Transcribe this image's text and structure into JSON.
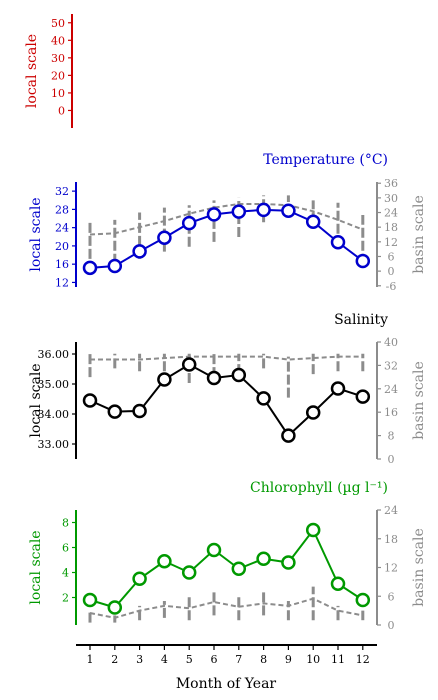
{
  "chart_data": [
    {
      "type": "line",
      "title": "",
      "ylabel": "local scale",
      "color": "#cc0000",
      "ylim": [
        -10,
        55
      ],
      "yticks": [
        0,
        10,
        20,
        30,
        40,
        50
      ],
      "series": []
    },
    {
      "type": "line",
      "title": "Temperature (°C)",
      "ylabel": "local scale",
      "ylabel_right": "basin scale",
      "color": "#0000cc",
      "ylim": [
        11,
        34
      ],
      "yticks": [
        12,
        16,
        20,
        24,
        28,
        32
      ],
      "ylim_right": [
        -6.5,
        36.5
      ],
      "yticks_right": [
        -6,
        0,
        6,
        12,
        18,
        24,
        30,
        36
      ],
      "x": [
        1,
        2,
        3,
        4,
        5,
        6,
        7,
        8,
        9,
        10,
        11,
        12
      ],
      "values": [
        15.2,
        15.6,
        18.8,
        21.8,
        25.0,
        26.9,
        27.5,
        27.9,
        27.7,
        25.3,
        20.8,
        16.7
      ],
      "basin_mean": [
        15,
        15.5,
        18,
        20.5,
        23.5,
        26,
        27.5,
        27.5,
        27,
        24.5,
        21,
        17
      ],
      "basin_range": [
        [
          5,
          20
        ],
        [
          3,
          21
        ],
        [
          5,
          24
        ],
        [
          8,
          26
        ],
        [
          10,
          27
        ],
        [
          12,
          29
        ],
        [
          14,
          30
        ],
        [
          20,
          31
        ],
        [
          23,
          31
        ],
        [
          20,
          29
        ],
        [
          10,
          28
        ],
        [
          3,
          23
        ]
      ]
    },
    {
      "type": "line",
      "title": "Salinity",
      "ylabel": "local scale",
      "ylabel_right": "basin scale",
      "color": "#000000",
      "ylim": [
        32.5,
        36.4
      ],
      "yticks": [
        33.0,
        34.0,
        35.0,
        36.0
      ],
      "ytick_labels": [
        "33.00",
        "34.00",
        "35.00",
        "36.00"
      ],
      "ylim_right": [
        0,
        40
      ],
      "yticks_right": [
        0,
        8,
        16,
        24,
        32,
        40
      ],
      "x": [
        1,
        2,
        3,
        4,
        5,
        6,
        7,
        8,
        9,
        10,
        11,
        12
      ],
      "values": [
        34.45,
        34.08,
        34.1,
        35.15,
        35.65,
        35.2,
        35.3,
        34.52,
        33.28,
        34.05,
        34.85,
        34.58
      ],
      "basin_mean": [
        34,
        34,
        34,
        34.5,
        35,
        35,
        35,
        35,
        34,
        34.5,
        35,
        35
      ],
      "basin_range": [
        [
          28,
          36
        ],
        [
          31,
          36
        ],
        [
          30,
          36
        ],
        [
          30,
          36
        ],
        [
          26,
          36
        ],
        [
          28,
          36
        ],
        [
          29,
          36
        ],
        [
          31,
          36
        ],
        [
          21,
          35
        ],
        [
          29,
          36
        ],
        [
          30,
          36
        ],
        [
          30,
          36
        ]
      ]
    },
    {
      "type": "line",
      "title": "Chlorophyll (µg l⁻¹)",
      "ylabel": "local scale",
      "ylabel_right": "basin scale",
      "color": "#009900",
      "ylim": [
        -0.2,
        9
      ],
      "yticks": [
        2,
        4,
        6,
        8
      ],
      "ylim_right": [
        0,
        24
      ],
      "yticks_right": [
        0,
        6,
        12,
        18,
        24
      ],
      "x": [
        1,
        2,
        3,
        4,
        5,
        6,
        7,
        8,
        9,
        10,
        11,
        12
      ],
      "values": [
        1.8,
        1.2,
        3.5,
        4.9,
        4.0,
        5.8,
        4.3,
        5.1,
        4.8,
        7.4,
        3.1,
        1.8
      ],
      "basin_mean": [
        2.5,
        1.5,
        3,
        4,
        3.5,
        4.8,
        3.8,
        4.5,
        4,
        5.5,
        3,
        2
      ],
      "basin_range": [
        [
          0.5,
          3
        ],
        [
          0.5,
          2
        ],
        [
          1,
          4
        ],
        [
          1.5,
          5
        ],
        [
          1,
          6
        ],
        [
          2,
          7
        ],
        [
          1,
          6
        ],
        [
          2,
          7
        ],
        [
          1,
          5
        ],
        [
          1,
          8
        ],
        [
          1,
          4
        ],
        [
          1,
          3
        ]
      ]
    }
  ],
  "xaxis": {
    "label": "Month of Year",
    "ticks": [
      1,
      2,
      3,
      4,
      5,
      6,
      7,
      8,
      9,
      10,
      11,
      12
    ]
  },
  "style": {
    "basin_color": "#8c8c8c"
  }
}
